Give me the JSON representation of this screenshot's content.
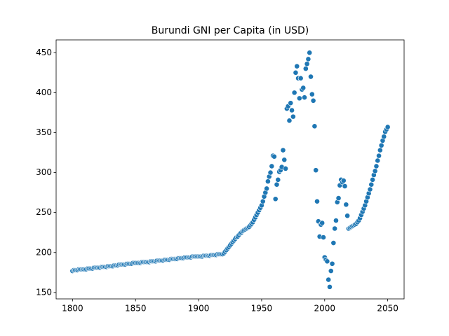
{
  "chart_data": {
    "type": "scatter",
    "title": "Burundi GNI per Capita (in USD)",
    "color": "#1f77b4",
    "x": [
      1800,
      1801,
      1802,
      1803,
      1804,
      1805,
      1806,
      1807,
      1808,
      1809,
      1810,
      1811,
      1812,
      1813,
      1814,
      1815,
      1816,
      1817,
      1818,
      1819,
      1820,
      1821,
      1822,
      1823,
      1824,
      1825,
      1826,
      1827,
      1828,
      1829,
      1830,
      1831,
      1832,
      1833,
      1834,
      1835,
      1836,
      1837,
      1838,
      1839,
      1840,
      1841,
      1842,
      1843,
      1844,
      1845,
      1846,
      1847,
      1848,
      1849,
      1850,
      1851,
      1852,
      1853,
      1854,
      1855,
      1856,
      1857,
      1858,
      1859,
      1860,
      1861,
      1862,
      1863,
      1864,
      1865,
      1866,
      1867,
      1868,
      1869,
      1870,
      1871,
      1872,
      1873,
      1874,
      1875,
      1876,
      1877,
      1878,
      1879,
      1880,
      1881,
      1882,
      1883,
      1884,
      1885,
      1886,
      1887,
      1888,
      1889,
      1890,
      1891,
      1892,
      1893,
      1894,
      1895,
      1896,
      1897,
      1898,
      1899,
      1900,
      1901,
      1902,
      1903,
      1904,
      1905,
      1906,
      1907,
      1908,
      1909,
      1910,
      1911,
      1912,
      1913,
      1914,
      1915,
      1916,
      1917,
      1918,
      1919,
      1920,
      1921,
      1922,
      1923,
      1924,
      1925,
      1926,
      1927,
      1928,
      1929,
      1930,
      1931,
      1932,
      1933,
      1934,
      1935,
      1936,
      1937,
      1938,
      1939,
      1940,
      1941,
      1942,
      1943,
      1944,
      1945,
      1946,
      1947,
      1948,
      1949,
      1950,
      1951,
      1952,
      1953,
      1954,
      1955,
      1956,
      1957,
      1958,
      1959,
      1960,
      1961,
      1962,
      1963,
      1964,
      1965,
      1966,
      1967,
      1968,
      1969,
      1970,
      1971,
      1972,
      1973,
      1974,
      1975,
      1976,
      1977,
      1978,
      1979,
      1980,
      1981,
      1982,
      1983,
      1984,
      1985,
      1986,
      1987,
      1988,
      1989,
      1990,
      1991,
      1992,
      1993,
      1994,
      1995,
      1996,
      1997,
      1998,
      1999,
      2000,
      2001,
      2002,
      2003,
      2004,
      2005,
      2006,
      2007,
      2008,
      2009,
      2010,
      2011,
      2012,
      2013,
      2014,
      2015,
      2016,
      2017,
      2018,
      2019,
      2020,
      2021,
      2022,
      2023,
      2024,
      2025,
      2026,
      2027,
      2028,
      2029,
      2030,
      2031,
      2032,
      2033,
      2034,
      2035,
      2036,
      2037,
      2038,
      2039,
      2040,
      2041,
      2042,
      2043,
      2044,
      2045,
      2046,
      2047,
      2048,
      2049,
      2050
    ],
    "values": [
      177,
      178,
      178,
      178,
      178,
      179,
      179,
      179,
      179,
      179,
      179,
      179,
      180,
      180,
      180,
      180,
      180,
      181,
      181,
      181,
      181,
      181,
      181,
      182,
      182,
      182,
      182,
      182,
      183,
      183,
      183,
      183,
      183,
      184,
      184,
      184,
      184,
      185,
      185,
      185,
      185,
      185,
      185,
      186,
      186,
      186,
      186,
      186,
      187,
      187,
      187,
      187,
      187,
      187,
      187,
      188,
      188,
      188,
      188,
      188,
      188,
      188,
      189,
      189,
      189,
      189,
      189,
      190,
      190,
      190,
      190,
      190,
      190,
      191,
      191,
      191,
      191,
      191,
      192,
      192,
      192,
      192,
      192,
      192,
      193,
      193,
      193,
      193,
      193,
      194,
      194,
      194,
      194,
      194,
      194,
      195,
      195,
      195,
      195,
      195,
      195,
      195,
      195,
      195,
      196,
      196,
      196,
      196,
      196,
      196,
      197,
      197,
      197,
      197,
      197,
      198,
      198,
      198,
      198,
      198,
      199,
      201,
      203,
      205,
      207,
      209,
      211,
      213,
      215,
      217,
      219,
      220,
      222,
      224,
      225,
      227,
      228,
      229,
      230,
      231,
      232,
      234,
      236,
      238,
      241,
      244,
      247,
      250,
      253,
      256,
      259,
      264,
      270,
      275,
      280,
      289,
      295,
      300,
      308,
      321,
      320,
      267,
      285,
      291,
      301,
      303,
      307,
      328,
      316,
      305,
      380,
      383,
      365,
      387,
      378,
      370,
      400,
      425,
      433,
      418,
      393,
      418,
      404,
      406,
      394,
      430,
      436,
      442,
      450,
      420,
      398,
      390,
      358,
      303,
      264,
      239,
      220,
      235,
      237,
      219,
      194,
      191,
      189,
      166,
      157,
      177,
      186,
      212,
      230,
      240,
      263,
      268,
      284,
      291,
      288,
      290,
      283,
      260,
      246,
      230,
      231,
      232,
      233,
      234,
      235,
      236,
      238,
      240,
      243,
      247,
      251,
      255,
      259,
      264,
      269,
      274,
      279,
      285,
      291,
      297,
      302,
      308,
      315,
      321,
      328,
      334,
      340,
      345,
      351,
      354,
      357
    ],
    "xlim": [
      1787,
      2063
    ],
    "ylim": [
      142,
      466
    ],
    "xticks": [
      1800,
      1850,
      1900,
      1950,
      2000,
      2050
    ],
    "yticks": [
      150,
      200,
      250,
      300,
      350,
      400,
      450
    ]
  }
}
